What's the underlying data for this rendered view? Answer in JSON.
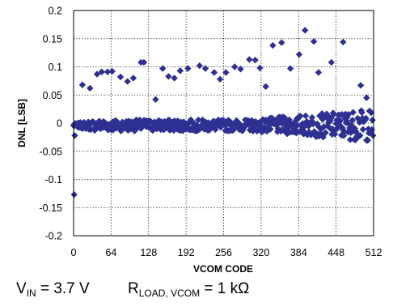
{
  "chart_data": {
    "type": "scatter",
    "xlabel": "VCOM CODE",
    "ylabel": "DNL [LSB]",
    "xlim": [
      0,
      512
    ],
    "ylim": [
      -0.2,
      0.2
    ],
    "x_ticks": [
      "0",
      "64",
      "128",
      "192",
      "256",
      "320",
      "384",
      "448",
      "512"
    ],
    "y_ticks": [
      "0.2",
      "0.15",
      "0.1",
      "0.05",
      "0",
      "-0.05",
      "-0.1",
      "-0.15",
      "-0.2"
    ],
    "grid": true,
    "marker_color": "#2e3192",
    "series": [
      {
        "marker": "diamond",
        "x": [
          1,
          2,
          15,
          28,
          40,
          48,
          58,
          66,
          80,
          92,
          102,
          115,
          120,
          140,
          152,
          162,
          172,
          182,
          195,
          215,
          225,
          240,
          250,
          260,
          275,
          285,
          300,
          310,
          318,
          328,
          340,
          355,
          370,
          385,
          395,
          410,
          418,
          440,
          460,
          490,
          500
        ],
        "y": [
          -0.127,
          -0.022,
          0.068,
          0.062,
          0.087,
          0.091,
          0.091,
          0.092,
          0.082,
          0.074,
          0.08,
          0.108,
          0.108,
          0.042,
          0.097,
          0.083,
          0.08,
          0.093,
          0.097,
          0.102,
          0.097,
          0.09,
          0.078,
          0.09,
          0.1,
          0.096,
          0.113,
          0.112,
          0.098,
          0.065,
          0.138,
          0.143,
          0.097,
          0.122,
          0.165,
          0.145,
          0.09,
          0.108,
          0.144,
          0.067,
          0.045
        ]
      }
    ]
  },
  "footer": {
    "vin_symbol": "V",
    "vin_sub": "IN",
    "vin_value": " = 3.7 V",
    "rload_symbol": "R",
    "rload_sub": "LOAD, VCOM",
    "rload_value": " = 1 kΩ"
  }
}
